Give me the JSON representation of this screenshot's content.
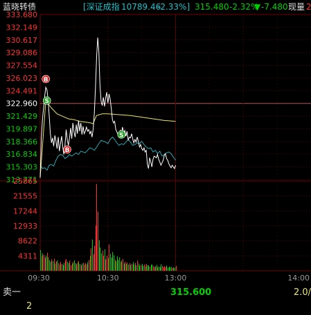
{
  "header": {
    "stock_name": "蓝晓转债",
    "index_name": "[深证成指",
    "index_value": "10789.46",
    "index_change_pct": "-2.33%]",
    "price": "315.480",
    "price_change_pct": "-2.32%",
    "change_arrow": "▼",
    "change_value": "-7.480",
    "current_volume_label": "现量",
    "current_volume_value": "2"
  },
  "colors": {
    "up": "#ff3232",
    "down": "#00d000",
    "neutral": "#ffffff",
    "index_text": "#22c0c8",
    "price_line": "#ffffff",
    "avg_line": "#e8e870",
    "index_line": "#2aa8b4",
    "grid_red": "#7a0000",
    "grid_dot": "#5a0000",
    "buy_marker": "#d81e1e",
    "sell_marker": "#1e9e1e"
  },
  "chart_data": {
    "type": "line",
    "title": "",
    "xlabel": "",
    "ylabel": "",
    "ylim": [
      313.771,
      333.68
    ],
    "reference_price": 322.96,
    "y_ticks": [
      "333.680",
      "332.149",
      "330.617",
      "329.086",
      "327.554",
      "326.023",
      "324.491",
      "322.960",
      "321.429",
      "319.897",
      "318.366",
      "316.834",
      "315.303",
      "313.771"
    ],
    "time_ticks": [
      "09:30",
      "10:30",
      "13:00",
      "14:00"
    ],
    "volume_ticks": [
      "25865",
      "21555",
      "17244",
      "12933",
      "8622",
      "4311"
    ],
    "volume_max": 25865,
    "x_range_minutes": [
      0,
      240
    ],
    "series": [
      {
        "key": "price",
        "x": [
          0,
          1,
          2,
          3,
          4,
          5,
          6,
          7,
          8,
          9,
          10,
          11,
          12,
          13,
          14,
          15,
          16,
          17,
          18,
          19,
          20,
          21,
          22,
          23,
          24,
          25,
          26,
          27,
          28,
          29,
          30,
          31,
          32,
          33,
          34,
          35,
          36,
          37,
          38,
          39,
          40,
          41,
          42,
          43,
          44,
          45,
          46,
          47,
          48,
          49,
          50,
          51,
          52,
          53,
          54,
          55,
          56,
          57,
          58,
          59,
          60,
          61,
          62,
          63,
          64,
          65,
          66,
          67,
          68,
          69,
          70,
          71,
          72,
          73,
          74,
          75,
          76,
          77,
          78,
          79,
          80,
          81,
          82,
          83,
          84,
          85,
          86,
          87,
          88,
          89,
          90,
          91,
          92,
          93,
          94,
          95,
          96,
          97,
          98,
          99,
          100,
          101,
          102,
          103,
          104,
          105,
          106,
          107,
          108,
          109,
          110,
          111,
          112,
          113,
          114,
          115,
          116,
          117,
          118,
          119,
          120
        ],
        "y": [
          314.0,
          318.8,
          321.0,
          322.4,
          323.8,
          324.9,
          324.6,
          323.4,
          321.5,
          319.3,
          318.2,
          318.8,
          317.8,
          319.1,
          318.4,
          317.5,
          318.9,
          317.2,
          318.1,
          319.0,
          317.7,
          316.8,
          317.9,
          319.8,
          318.6,
          317.9,
          318.8,
          320.0,
          318.7,
          320.6,
          319.5,
          318.9,
          320.4,
          319.3,
          320.9,
          319.6,
          320.6,
          319.2,
          320.2,
          319.3,
          319.6,
          320.1,
          319.6,
          319.8,
          319.3,
          319.6,
          318.9,
          319.9,
          321.8,
          324.8,
          328.6,
          330.9,
          329.2,
          325.2,
          323.2,
          322.7,
          323.7,
          322.6,
          323.6,
          324.3,
          323.0,
          324.1,
          323.5,
          322.4,
          321.0,
          320.6,
          320.8,
          319.8,
          319.5,
          319.2,
          318.9,
          319.7,
          319.4,
          320.1,
          319.3,
          319.7,
          319.0,
          319.6,
          318.5,
          318.9,
          318.8,
          319.3,
          318.7,
          318.2,
          318.6,
          318.3,
          318.9,
          318.4,
          317.7,
          318.0,
          317.5,
          317.3,
          317.6,
          317.1,
          317.3,
          315.6,
          315.1,
          316.4,
          315.9,
          315.3,
          316.2,
          316.6,
          316.5,
          316.4,
          316.8,
          316.2,
          315.9,
          315.5,
          315.8,
          316.1,
          316.7,
          316.9,
          316.3,
          316.1,
          315.7,
          315.4,
          315.2,
          315.5,
          315.3,
          315.1,
          315.5
        ]
      },
      {
        "key": "average",
        "x": [
          0,
          5,
          10,
          15,
          20,
          25,
          30,
          35,
          40,
          45,
          47,
          48,
          50,
          55,
          60,
          70,
          80,
          90,
          100,
          110,
          120
        ],
        "y": [
          314.0,
          323.3,
          322.4,
          321.7,
          321.4,
          321.1,
          321.0,
          320.8,
          320.7,
          320.6,
          320.5,
          320.9,
          321.5,
          321.7,
          321.7,
          321.6,
          321.5,
          321.3,
          321.1,
          320.9,
          320.8
        ]
      },
      {
        "key": "index",
        "x": [
          0,
          2,
          4,
          6,
          8,
          10,
          12,
          14,
          16,
          18,
          20,
          22,
          24,
          26,
          28,
          30,
          32,
          34,
          36,
          38,
          40,
          42,
          44,
          46,
          48,
          50,
          52,
          54,
          56,
          58,
          60,
          62,
          64,
          66,
          68,
          70,
          72,
          74,
          76,
          78,
          80,
          82,
          84,
          86,
          88,
          90,
          92,
          94,
          96,
          98,
          100,
          102,
          104,
          106,
          108,
          110,
          112,
          114,
          116,
          118,
          120
        ],
        "y": [
          315.6,
          315.1,
          315.2,
          314.9,
          315.5,
          315.6,
          315.4,
          316.1,
          316.6,
          316.8,
          316.7,
          316.3,
          316.5,
          316.8,
          316.6,
          316.8,
          317.0,
          316.8,
          317.2,
          317.1,
          317.0,
          317.3,
          317.6,
          317.5,
          317.3,
          317.7,
          318.1,
          318.5,
          318.4,
          318.3,
          318.1,
          318.6,
          318.9,
          318.6,
          318.2,
          317.9,
          318.1,
          318.0,
          318.3,
          318.6,
          318.3,
          317.9,
          318.0,
          318.2,
          318.1,
          318.4,
          318.0,
          317.7,
          317.5,
          317.6,
          317.1,
          317.3,
          316.9,
          317.2,
          316.6,
          316.8,
          317.0,
          317.1,
          316.9,
          316.5,
          316.1
        ]
      }
    ],
    "volume": {
      "x": [
        0,
        1,
        2,
        3,
        4,
        5,
        6,
        7,
        8,
        9,
        10,
        11,
        12,
        13,
        14,
        15,
        16,
        17,
        18,
        19,
        20,
        21,
        22,
        23,
        24,
        25,
        26,
        27,
        28,
        29,
        30,
        31,
        32,
        33,
        34,
        35,
        36,
        37,
        38,
        39,
        40,
        41,
        42,
        43,
        44,
        45,
        46,
        47,
        48,
        49,
        50,
        51,
        52,
        53,
        54,
        55,
        56,
        57,
        58,
        59,
        60,
        61,
        62,
        63,
        64,
        65,
        66,
        67,
        68,
        69,
        70,
        71,
        72,
        73,
        74,
        75,
        76,
        77,
        78,
        79,
        80,
        81,
        82,
        83,
        84,
        85,
        86,
        87,
        88,
        89,
        90,
        91,
        92,
        93,
        94,
        95,
        96,
        97,
        98,
        99,
        100,
        101,
        102,
        103,
        104,
        105,
        106,
        107,
        108,
        109,
        110,
        111,
        112,
        113,
        114,
        115,
        116,
        117,
        118,
        119,
        120
      ],
      "values": [
        6000,
        4200,
        5000,
        4600,
        3800,
        4400,
        5200,
        3900,
        3100,
        2600,
        3300,
        2800,
        3500,
        2100,
        2600,
        3000,
        2200,
        1800,
        2500,
        2000,
        1700,
        2300,
        2900,
        3400,
        2600,
        2200,
        2900,
        1600,
        2100,
        2500,
        3000,
        2200,
        1900,
        2400,
        2800,
        2000,
        1600,
        2100,
        2300,
        1800,
        2200,
        1900,
        2500,
        3100,
        4300,
        6500,
        9000,
        4800,
        7200,
        13000,
        25000,
        17000,
        8800,
        6700,
        5000,
        5800,
        4300,
        6200,
        3300,
        4400,
        3600,
        7600,
        4900,
        3800,
        5400,
        4500,
        3200,
        2700,
        4200,
        3100,
        3900,
        2500,
        2900,
        3400,
        2100,
        2600,
        2000,
        2400,
        1800,
        2200,
        1700,
        2000,
        2500,
        1800,
        2300,
        1600,
        2900,
        2100,
        1500,
        1700,
        2000,
        1400,
        1800,
        1300,
        2000,
        1600,
        1500,
        1200,
        1700,
        1800,
        1400,
        1100,
        1300,
        1700,
        1000,
        1200,
        1100,
        1900,
        1400,
        1000,
        1300,
        1100,
        1500,
        900,
        1200,
        1000,
        1100,
        800,
        1000,
        900,
        1400
      ],
      "up": [
        0,
        1,
        0,
        1,
        1,
        0,
        1,
        0,
        0,
        0,
        1,
        0,
        1,
        0,
        1,
        0,
        1,
        0,
        1,
        1,
        0,
        0,
        1,
        1,
        0,
        0,
        1,
        1,
        0,
        1,
        0,
        0,
        1,
        0,
        1,
        0,
        1,
        0,
        1,
        0,
        1,
        1,
        0,
        1,
        0,
        1,
        0,
        1,
        1,
        1,
        1,
        1,
        0,
        0,
        0,
        1,
        1,
        0,
        1,
        1,
        0,
        1,
        0,
        0,
        0,
        0,
        1,
        0,
        0,
        0,
        0,
        1,
        0,
        1,
        0,
        1,
        0,
        1,
        0,
        1,
        0,
        1,
        0,
        0,
        1,
        0,
        1,
        0,
        0,
        1,
        0,
        0,
        1,
        0,
        1,
        0,
        0,
        1,
        0,
        0,
        1,
        1,
        0,
        0,
        1,
        0,
        0,
        0,
        1,
        1,
        1,
        1,
        0,
        0,
        0,
        0,
        0,
        1,
        0,
        0,
        1
      ]
    },
    "trade_markers": [
      {
        "type": "B",
        "x": 5,
        "y": 325.9
      },
      {
        "type": "S",
        "x": 6,
        "y": 323.3
      },
      {
        "type": "B",
        "x": 24,
        "y": 317.4
      },
      {
        "type": "S",
        "x": 72,
        "y": 319.2
      }
    ]
  },
  "order_book": {
    "sell1_label": "卖一",
    "sell1_price": "315.600",
    "sell1_volume": "2.0/",
    "sell1_count": "2"
  }
}
